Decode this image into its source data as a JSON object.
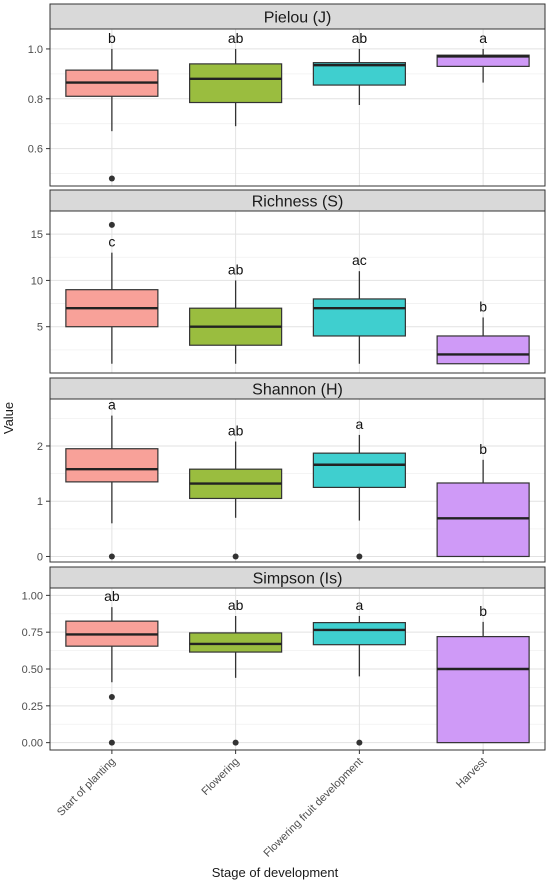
{
  "chart_data": {
    "type": "boxplot",
    "facets_layout": "vertical",
    "grid": true,
    "legend": "none",
    "xlabel": "Stage of development",
    "ylabel": "Value",
    "categories": [
      "Start of planting",
      "Flowering",
      "Flowering fruit development",
      "Harvest"
    ],
    "category_colors": [
      "#f8a199",
      "#9abd3f",
      "#3fcfcf",
      "#cf9af7"
    ],
    "panels": [
      {
        "title": "Pielou (J)",
        "ylim": [
          0.45,
          1.08
        ],
        "yticks": [
          0.6,
          0.8,
          1.0
        ],
        "ytick_labels": [
          "0.6",
          "0.8",
          "1.0"
        ],
        "boxes": [
          {
            "category": "Start of planting",
            "min": 0.67,
            "q1": 0.81,
            "median": 0.865,
            "q3": 0.915,
            "max": 1.0,
            "outliers": [
              0.48
            ],
            "letter": "b"
          },
          {
            "category": "Flowering",
            "min": 0.69,
            "q1": 0.785,
            "median": 0.88,
            "q3": 0.94,
            "max": 1.0,
            "outliers": [],
            "letter": "ab"
          },
          {
            "category": "Flowering fruit development",
            "min": 0.775,
            "q1": 0.855,
            "median": 0.935,
            "q3": 0.945,
            "max": 1.0,
            "outliers": [],
            "letter": "ab"
          },
          {
            "category": "Harvest",
            "min": 0.865,
            "q1": 0.93,
            "median": 0.97,
            "q3": 0.975,
            "max": 1.0,
            "outliers": [],
            "letter": "a"
          }
        ]
      },
      {
        "title": "Richness (S)",
        "ylim": [
          0,
          17.5
        ],
        "yticks": [
          5,
          10,
          15
        ],
        "ytick_labels": [
          "5",
          "10",
          "15"
        ],
        "boxes": [
          {
            "category": "Start of planting",
            "min": 1,
            "q1": 5,
            "median": 7,
            "q3": 9,
            "max": 13,
            "outliers": [
              16
            ],
            "letter": "c"
          },
          {
            "category": "Flowering",
            "min": 1,
            "q1": 3,
            "median": 5,
            "q3": 7,
            "max": 10,
            "outliers": [],
            "letter": "ab"
          },
          {
            "category": "Flowering fruit development",
            "min": 1,
            "q1": 4,
            "median": 7,
            "q3": 8,
            "max": 11,
            "outliers": [],
            "letter": "ac"
          },
          {
            "category": "Harvest",
            "min": 1,
            "q1": 1,
            "median": 2,
            "q3": 4,
            "max": 6,
            "outliers": [],
            "letter": "b"
          }
        ]
      },
      {
        "title": "Shannon (H)",
        "ylim": [
          -0.1,
          2.85
        ],
        "yticks": [
          0,
          1,
          2
        ],
        "ytick_labels": [
          "0",
          "1",
          "2"
        ],
        "boxes": [
          {
            "category": "Start of planting",
            "min": 0.6,
            "q1": 1.35,
            "median": 1.58,
            "q3": 1.95,
            "max": 2.55,
            "outliers": [
              0
            ],
            "letter": "a"
          },
          {
            "category": "Flowering",
            "min": 0.7,
            "q1": 1.05,
            "median": 1.32,
            "q3": 1.58,
            "max": 2.08,
            "outliers": [
              0
            ],
            "letter": "ab"
          },
          {
            "category": "Flowering fruit development",
            "min": 0.65,
            "q1": 1.25,
            "median": 1.66,
            "q3": 1.87,
            "max": 2.2,
            "outliers": [
              0
            ],
            "letter": "a"
          },
          {
            "category": "Harvest",
            "min": 0,
            "q1": 0,
            "median": 0.69,
            "q3": 1.33,
            "max": 1.75,
            "outliers": [],
            "letter": "b"
          }
        ]
      },
      {
        "title": "Simpson (Is)",
        "ylim": [
          -0.05,
          1.05
        ],
        "yticks": [
          0,
          0.25,
          0.5,
          0.75,
          1.0
        ],
        "ytick_labels": [
          "0.00",
          "0.25",
          "0.50",
          "0.75",
          "1.00"
        ],
        "boxes": [
          {
            "category": "Start of planting",
            "min": 0.41,
            "q1": 0.655,
            "median": 0.735,
            "q3": 0.825,
            "max": 0.92,
            "outliers": [
              0.31,
              0
            ],
            "letter": "ab"
          },
          {
            "category": "Flowering",
            "min": 0.44,
            "q1": 0.615,
            "median": 0.67,
            "q3": 0.745,
            "max": 0.86,
            "outliers": [
              0
            ],
            "letter": "ab"
          },
          {
            "category": "Flowering fruit development",
            "min": 0.45,
            "q1": 0.665,
            "median": 0.765,
            "q3": 0.815,
            "max": 0.86,
            "outliers": [
              0
            ],
            "letter": "a"
          },
          {
            "category": "Harvest",
            "min": 0,
            "q1": 0,
            "median": 0.5,
            "q3": 0.72,
            "max": 0.82,
            "outliers": [],
            "letter": "b"
          }
        ]
      }
    ]
  }
}
